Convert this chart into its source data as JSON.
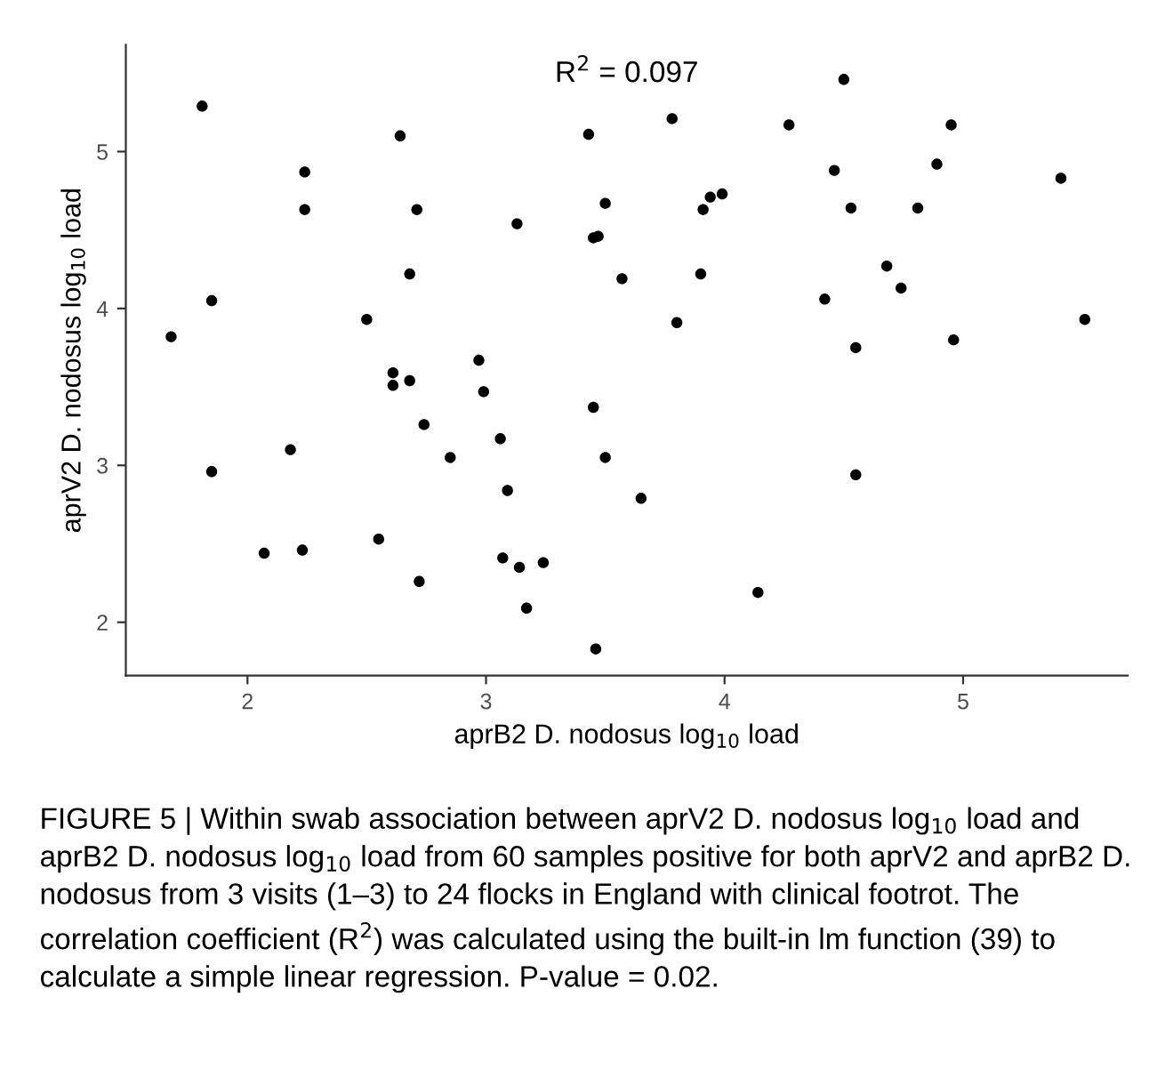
{
  "chart_data": {
    "type": "scatter",
    "xlabel": "aprB2 D. nodosus log$_{10}$ load",
    "ylabel": "aprV2 D. nodosus log$_{10}$ load",
    "annotations": [
      "R$^{2}$ = 0.097",
      "FIGURE 5 | Within swab association between aprV2 D. nodosus log$_{10}$ load and aprB2 D. nodosus log$_{10}$ load from 60 samples positive for both aprV2 and aprB2 D. nodosus from 3 visits (1–3) to 24 flocks in England with clinical footrot. The correlation coefficient (R$^{2}$) was calculated using the built-in lm function (39) to calculate a simple linear regression. P-value = 0.02."
    ],
    "series": [
      {
        "color": "#000000",
        "x": [
          1.81,
          2.24,
          2.24,
          1.85,
          1.68,
          1.85,
          2.18,
          2.07,
          2.23,
          2.64,
          2.71,
          2.68,
          2.5,
          2.61,
          2.61,
          2.68,
          2.74,
          2.85,
          2.55,
          2.72,
          2.97,
          2.99,
          3.06,
          3.09,
          3.13,
          3.07,
          3.14,
          3.24,
          3.17,
          3.43,
          3.5,
          3.45,
          3.47,
          3.57,
          3.45,
          3.5,
          3.65,
          3.46,
          3.78,
          3.8,
          3.91,
          3.94,
          3.99,
          3.9,
          4.14,
          4.27,
          4.5,
          4.46,
          4.53,
          4.42,
          4.55,
          4.55,
          4.68,
          4.74,
          4.81,
          4.89,
          4.95,
          4.96,
          5.41,
          5.51
        ],
        "values": [
          5.29,
          4.87,
          4.63,
          4.05,
          3.82,
          2.96,
          3.1,
          2.44,
          2.46,
          5.1,
          4.63,
          4.22,
          3.93,
          3.59,
          3.51,
          3.54,
          3.26,
          3.05,
          2.53,
          2.26,
          3.67,
          3.47,
          3.17,
          2.84,
          4.54,
          2.41,
          2.35,
          2.38,
          2.09,
          5.11,
          4.67,
          4.45,
          4.46,
          4.19,
          3.37,
          3.05,
          2.79,
          1.83,
          5.21,
          3.91,
          4.63,
          4.71,
          4.73,
          4.22,
          2.19,
          5.17,
          5.46,
          4.88,
          4.64,
          4.06,
          3.75,
          2.94,
          4.27,
          4.13,
          4.64,
          4.92,
          5.17,
          3.8,
          4.83,
          3.93
        ]
      }
    ],
    "xlim": [
      1.49,
      5.69
    ],
    "xticks": [
      2,
      3,
      4,
      5
    ],
    "ylim": [
      1.66,
      5.68
    ],
    "yticks": [
      2,
      3,
      4,
      5
    ],
    "marker": "circle",
    "grid": false
  }
}
